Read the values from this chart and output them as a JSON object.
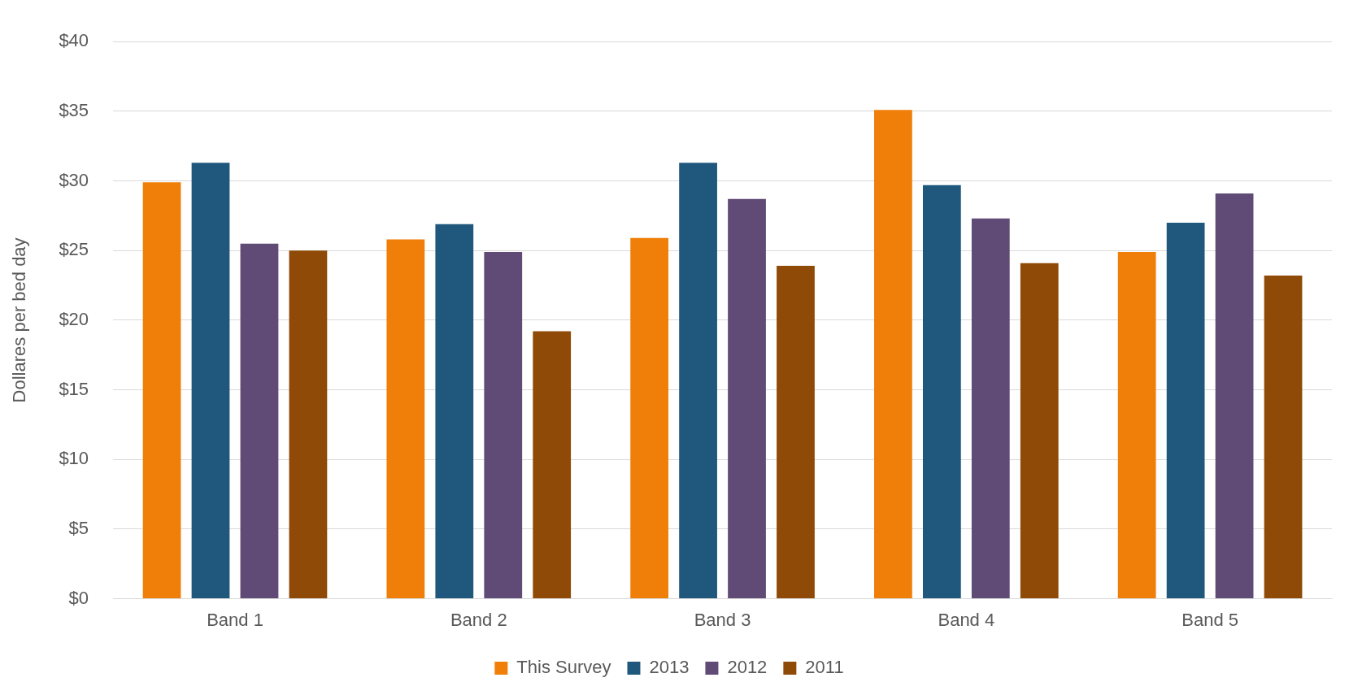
{
  "chart_data": {
    "type": "bar",
    "ylabel": "Dollares per bed day",
    "categories": [
      "Band 1",
      "Band 2",
      "Band 3",
      "Band 4",
      "Band 5"
    ],
    "series": [
      {
        "name": "This Survey",
        "color": "#f07f09",
        "values": [
          29.9,
          25.8,
          25.9,
          35.1,
          24.9
        ]
      },
      {
        "name": "2013",
        "color": "#1f587c",
        "values": [
          31.3,
          26.9,
          31.3,
          29.7,
          27.0
        ]
      },
      {
        "name": "2012",
        "color": "#604a76",
        "values": [
          25.5,
          24.9,
          28.7,
          27.3,
          29.1
        ]
      },
      {
        "name": "2011",
        "color": "#8e4a06",
        "values": [
          25.0,
          19.2,
          23.9,
          24.1,
          23.2
        ]
      }
    ],
    "ylim": [
      0,
      40
    ],
    "yticks": [
      {
        "value": 0,
        "label": "$0"
      },
      {
        "value": 5,
        "label": "$5"
      },
      {
        "value": 10,
        "label": "$10"
      },
      {
        "value": 15,
        "label": "$15"
      },
      {
        "value": 20,
        "label": "$20"
      },
      {
        "value": 25,
        "label": "$25"
      },
      {
        "value": 30,
        "label": "$30"
      },
      {
        "value": 35,
        "label": "$35"
      },
      {
        "value": 40,
        "label": "$40"
      }
    ],
    "grid": "y",
    "legend": "bottom"
  }
}
